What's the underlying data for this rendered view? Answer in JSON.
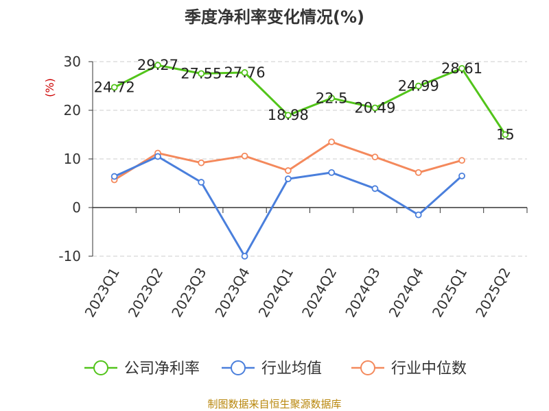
{
  "chart_data": {
    "type": "line",
    "title": "季度净利率变化情况(%)",
    "ylabel": "(%)",
    "ylim": [
      -10,
      30
    ],
    "yticks": [
      30,
      20,
      10,
      0,
      -10
    ],
    "grid": true,
    "legend_position": "bottom",
    "categories": [
      "2023Q1",
      "2023Q2",
      "2023Q3",
      "2023Q4",
      "2024Q1",
      "2024Q2",
      "2024Q3",
      "2024Q4",
      "2025Q1",
      "2025Q2"
    ],
    "series": [
      {
        "name": "公司净利率",
        "color": "#52c41a",
        "values": [
          24.72,
          29.27,
          27.55,
          27.76,
          18.98,
          22.5,
          20.49,
          24.99,
          28.61,
          15
        ],
        "labels": [
          "24.72",
          "29.27",
          "27.55",
          "27.76",
          "18.98",
          "22.5",
          "20.49",
          "24.99",
          "28.61",
          "15"
        ]
      },
      {
        "name": "行业均值",
        "color": "#4a7fdc",
        "values": [
          6.4,
          10.5,
          5.2,
          -10.0,
          5.9,
          7.2,
          3.9,
          -1.5,
          6.5,
          null
        ]
      },
      {
        "name": "行业中位数",
        "color": "#f4895c",
        "values": [
          5.7,
          11.2,
          9.2,
          10.6,
          7.6,
          13.5,
          10.4,
          7.2,
          9.7,
          null
        ]
      }
    ],
    "source": "制图数据来自恒生聚源数据库"
  },
  "colors": {
    "axis_label_red": "#cc0000",
    "source_color": "#b8860b",
    "grid": "#cccccc"
  }
}
